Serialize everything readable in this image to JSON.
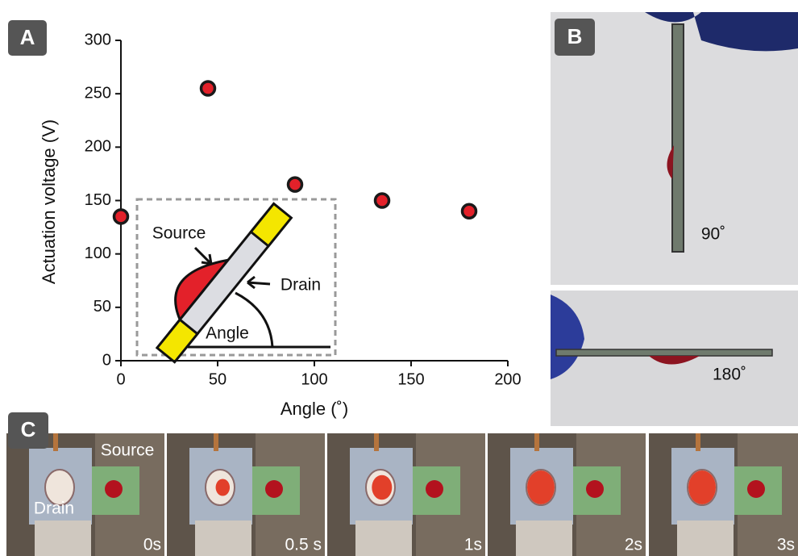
{
  "chart_data": {
    "type": "scatter",
    "x_label": "Angle (˚)",
    "y_label": "Actuation voltage (V)",
    "x": [
      0,
      45,
      90,
      135,
      180
    ],
    "y": [
      135,
      255,
      165,
      150,
      140
    ],
    "color": "#e3212a",
    "xlim": [
      0,
      200
    ],
    "xticks": [
      0,
      50,
      100,
      150,
      200
    ],
    "ylim": [
      0,
      300
    ],
    "yticks": [
      0,
      50,
      100,
      150,
      200,
      250,
      300
    ]
  },
  "inset": {
    "source": "Source",
    "drain": "Drain",
    "angle": "Angle"
  },
  "panels": {
    "a": "A",
    "b": "B",
    "c": "C"
  },
  "panel_b": {
    "top_label": "90˚",
    "bottom_label": "180˚"
  },
  "panel_c": {
    "source": "Source",
    "drain": "Drain",
    "times": [
      "0s",
      "0.5 s",
      "1s",
      "2s",
      "3s"
    ]
  }
}
